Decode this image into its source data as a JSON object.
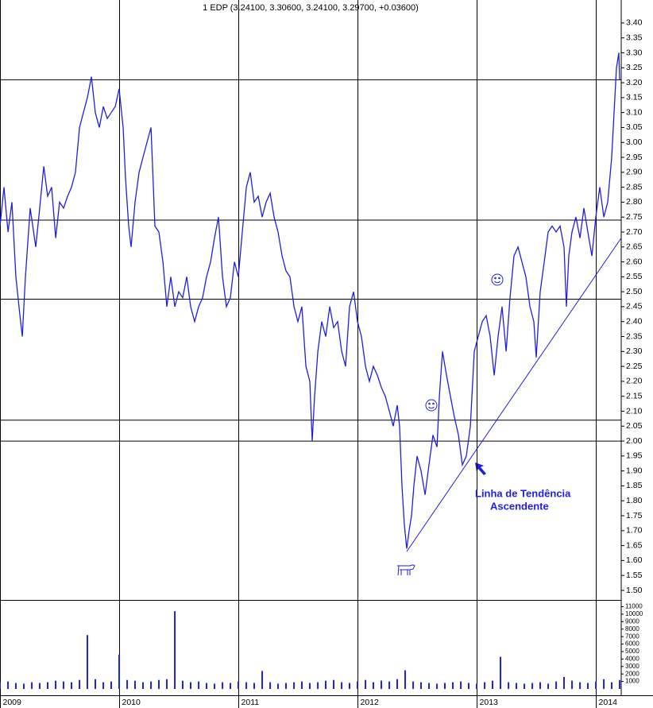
{
  "chart_data": [
    {
      "type": "line",
      "title": "1 EDP (3.24100, 3.30600, 3.24100, 3.29700, +0.03600)",
      "color": "#1f1fe0",
      "xlim": [
        2009,
        2014.213
      ],
      "ylim": [
        1.468,
        3.445
      ],
      "yticks": [
        {
          "value": 1.5,
          "label": "1.50"
        },
        1.55,
        {
          "value": 1.6,
          "label": "1.60"
        },
        1.65,
        {
          "value": 1.7,
          "label": "1.70"
        },
        1.75,
        {
          "value": 1.8,
          "label": "1.80"
        },
        1.85,
        {
          "value": 1.9,
          "label": "1.90"
        },
        1.95,
        {
          "value": 2,
          "label": "2.00"
        },
        2.05,
        {
          "value": 2.1,
          "label": "2.10"
        },
        2.15,
        {
          "value": 2.2,
          "label": "2.20"
        },
        2.25,
        {
          "value": 2.3,
          "label": "2.30"
        },
        2.35,
        {
          "value": 2.4,
          "label": "2.40"
        },
        2.45,
        {
          "value": 2.5,
          "label": "2.50"
        },
        2.55,
        {
          "value": 2.6,
          "label": "2.60"
        },
        2.65,
        {
          "value": 2.7,
          "label": "2.70"
        },
        2.75,
        {
          "value": 2.8,
          "label": "2.80"
        },
        2.85,
        {
          "value": 2.9,
          "label": "2.90"
        },
        2.95,
        {
          "value": 3,
          "label": "3.00"
        },
        3.05,
        {
          "value": 3.1,
          "label": "3.10"
        },
        3.15,
        {
          "value": 3.2,
          "label": "3.20"
        },
        3.25,
        {
          "value": 3.3,
          "label": "3.30"
        },
        3.35,
        {
          "value": 3.4,
          "label": "3.40"
        }
      ],
      "x": [
        2009.0,
        2009.033,
        2009.067,
        2009.1,
        2009.133,
        2009.167,
        2009.187,
        2009.213,
        2009.253,
        2009.3,
        2009.333,
        2009.367,
        2009.4,
        2009.433,
        2009.467,
        2009.5,
        2009.533,
        2009.567,
        2009.6,
        2009.633,
        2009.667,
        2009.7,
        2009.733,
        2009.767,
        2009.8,
        2009.833,
        2009.867,
        2009.9,
        2009.933,
        2009.967,
        2010.0,
        2010.033,
        2010.053,
        2010.08,
        2010.1,
        2010.133,
        2010.167,
        2010.2,
        2010.233,
        2010.267,
        2010.3,
        2010.333,
        2010.367,
        2010.4,
        2010.433,
        2010.467,
        2010.5,
        2010.533,
        2010.567,
        2010.6,
        2010.633,
        2010.667,
        2010.7,
        2010.733,
        2010.767,
        2010.8,
        2010.833,
        2010.867,
        2010.9,
        2010.933,
        2010.967,
        2011.0,
        2011.033,
        2011.067,
        2011.1,
        2011.133,
        2011.167,
        2011.2,
        2011.233,
        2011.267,
        2011.3,
        2011.333,
        2011.367,
        2011.4,
        2011.433,
        2011.467,
        2011.5,
        2011.533,
        2011.567,
        2011.6,
        2011.62,
        2011.64,
        2011.667,
        2011.7,
        2011.733,
        2011.767,
        2011.8,
        2011.833,
        2011.867,
        2011.9,
        2011.933,
        2011.967,
        2012.0,
        2012.033,
        2012.067,
        2012.1,
        2012.133,
        2012.167,
        2012.2,
        2012.233,
        2012.267,
        2012.3,
        2012.333,
        2012.353,
        2012.373,
        2012.393,
        2012.413,
        2012.433,
        2012.453,
        2012.473,
        2012.5,
        2012.533,
        2012.567,
        2012.6,
        2012.633,
        2012.667,
        2012.687,
        2012.713,
        2012.747,
        2012.78,
        2012.813,
        2012.847,
        2012.88,
        2012.913,
        2012.947,
        2012.98,
        2013.013,
        2013.047,
        2013.08,
        2013.113,
        2013.147,
        2013.18,
        2013.213,
        2013.247,
        2013.28,
        2013.313,
        2013.347,
        2013.38,
        2013.413,
        2013.447,
        2013.48,
        2013.5,
        2013.533,
        2013.567,
        2013.6,
        2013.633,
        2013.667,
        2013.7,
        2013.733,
        2013.753,
        2013.773,
        2013.8,
        2013.833,
        2013.867,
        2013.9,
        2013.933,
        2013.967,
        2014.0,
        2014.033,
        2014.067,
        2014.1,
        2014.133,
        2014.153,
        2014.173,
        2014.193,
        2014.2
      ],
      "values": [
        2.72,
        2.85,
        2.7,
        2.8,
        2.55,
        2.42,
        2.35,
        2.55,
        2.78,
        2.65,
        2.78,
        2.92,
        2.82,
        2.85,
        2.68,
        2.8,
        2.78,
        2.82,
        2.85,
        2.9,
        3.05,
        3.1,
        3.15,
        3.22,
        3.1,
        3.05,
        3.12,
        3.08,
        3.1,
        3.12,
        3.18,
        3.05,
        2.88,
        2.72,
        2.65,
        2.8,
        2.9,
        2.95,
        3.0,
        3.05,
        2.72,
        2.7,
        2.6,
        2.45,
        2.55,
        2.45,
        2.5,
        2.48,
        2.55,
        2.45,
        2.4,
        2.45,
        2.48,
        2.55,
        2.6,
        2.68,
        2.75,
        2.55,
        2.45,
        2.48,
        2.6,
        2.55,
        2.7,
        2.85,
        2.9,
        2.8,
        2.82,
        2.75,
        2.8,
        2.83,
        2.75,
        2.7,
        2.62,
        2.57,
        2.55,
        2.45,
        2.4,
        2.45,
        2.25,
        2.2,
        2.0,
        2.15,
        2.3,
        2.4,
        2.35,
        2.45,
        2.38,
        2.4,
        2.3,
        2.25,
        2.45,
        2.5,
        2.4,
        2.35,
        2.25,
        2.2,
        2.25,
        2.22,
        2.18,
        2.15,
        2.1,
        2.05,
        2.12,
        2.05,
        1.85,
        1.72,
        1.64,
        1.7,
        1.75,
        1.85,
        1.95,
        1.9,
        1.82,
        1.92,
        2.02,
        1.98,
        2.15,
        2.3,
        2.22,
        2.15,
        2.08,
        2.02,
        1.92,
        1.95,
        2.05,
        2.3,
        2.35,
        2.4,
        2.42,
        2.35,
        2.22,
        2.35,
        2.45,
        2.3,
        2.48,
        2.62,
        2.65,
        2.6,
        2.55,
        2.45,
        2.4,
        2.28,
        2.5,
        2.6,
        2.7,
        2.72,
        2.7,
        2.72,
        2.65,
        2.45,
        2.62,
        2.7,
        2.75,
        2.68,
        2.78,
        2.7,
        2.62,
        2.75,
        2.85,
        2.75,
        2.8,
        2.95,
        3.1,
        3.25,
        3.3,
        3.21
      ],
      "support_levels": [
        3.21,
        2.74,
        2.475,
        2.07,
        2.0
      ],
      "trendline": {
        "x": [
          2012.413,
          2014.213
        ],
        "y": [
          1.63,
          2.68
        ]
      },
      "annotations": [
        "Linha de Tendência",
        "Ascendente"
      ]
    },
    {
      "type": "bar",
      "color": "#1f1fe0",
      "xlim": [
        2009,
        2014.213
      ],
      "ylim": [
        0,
        11800
      ],
      "xticks": [
        2009,
        2010,
        2011,
        2012,
        2013,
        2014
      ],
      "yticks": [
        1000,
        2000,
        3000,
        4000,
        5000,
        6000,
        7000,
        8000,
        9000,
        10000,
        11000
      ],
      "x": [
        2009.0,
        2009.067,
        2009.133,
        2009.2,
        2009.267,
        2009.333,
        2009.4,
        2009.467,
        2009.533,
        2009.6,
        2009.667,
        2009.733,
        2009.8,
        2009.867,
        2009.933,
        2010.0,
        2010.067,
        2010.133,
        2010.2,
        2010.267,
        2010.333,
        2010.4,
        2010.467,
        2010.533,
        2010.6,
        2010.667,
        2010.733,
        2010.8,
        2010.867,
        2010.933,
        2011.0,
        2011.067,
        2011.133,
        2011.2,
        2011.267,
        2011.333,
        2011.4,
        2011.467,
        2011.533,
        2011.6,
        2011.667,
        2011.733,
        2011.8,
        2011.867,
        2011.933,
        2012.0,
        2012.067,
        2012.133,
        2012.2,
        2012.267,
        2012.333,
        2012.4,
        2012.467,
        2012.533,
        2012.6,
        2012.667,
        2012.733,
        2012.8,
        2012.867,
        2012.933,
        2013.0,
        2013.067,
        2013.133,
        2013.2,
        2013.267,
        2013.333,
        2013.4,
        2013.467,
        2013.533,
        2013.6,
        2013.667,
        2013.733,
        2013.8,
        2013.867,
        2013.933,
        2014.0,
        2014.067,
        2014.133,
        2014.2
      ],
      "values": [
        900,
        1000,
        800,
        700,
        900,
        800,
        900,
        1100,
        1000,
        900,
        1200,
        7200,
        1300,
        900,
        1000,
        4600,
        1200,
        1100,
        900,
        1000,
        1200,
        1300,
        10400,
        1100,
        900,
        1000,
        800,
        700,
        900,
        800,
        1000,
        900,
        800,
        2400,
        900,
        700,
        800,
        900,
        1000,
        800,
        900,
        1100,
        1200,
        900,
        800,
        1000,
        1200,
        900,
        1100,
        1000,
        1300,
        2500,
        1000,
        900,
        800,
        700,
        800,
        900,
        1000,
        800,
        700,
        900,
        1100,
        4300,
        900,
        800,
        700,
        800,
        900,
        700,
        1000,
        1600,
        1100,
        900,
        800,
        1000,
        1300,
        900,
        1200
      ]
    }
  ]
}
